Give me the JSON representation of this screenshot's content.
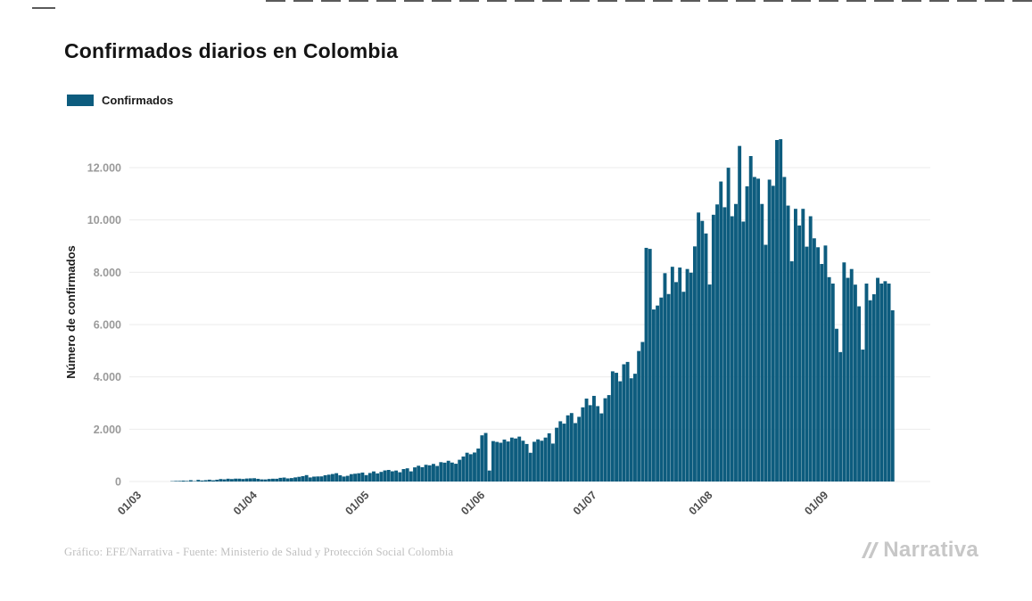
{
  "page": {
    "title": "Confirmados diarios en Colombia",
    "legend_label": "Confirmados",
    "footer_credit": "Gráfico: EFE/Narrativa - Fuente: Ministerio de Salud y Protección Social Colombia",
    "brand": "Narrativa"
  },
  "colors": {
    "bar": "#0d5c7e",
    "grid": "#ebebeb",
    "ytick_text": "#9a9a9a",
    "xtick_text": "#4d4d4d",
    "axis_title": "#1a1a1a"
  },
  "chart_data": {
    "type": "bar",
    "title": "Confirmados diarios en Colombia",
    "xlabel": "",
    "ylabel": "Número de confirmados",
    "legend": [
      "Confirmados"
    ],
    "legend_position": "top-left",
    "grid": "horizontal",
    "bar_color": "#0d5c7e",
    "ylim": [
      0,
      13500
    ],
    "yticks": [
      0,
      2000,
      4000,
      6000,
      8000,
      10000,
      12000
    ],
    "ytick_labels": [
      "0",
      "2.000",
      "4.000",
      "6.000",
      "8.000",
      "10.000",
      "12.000"
    ],
    "x_frequency": "daily",
    "x_start_label": "01/03",
    "xtick_labels": [
      "01/03",
      "01/04",
      "01/05",
      "01/06",
      "01/07",
      "01/08",
      "01/09"
    ],
    "xtick_indices": [
      0,
      31,
      61,
      92,
      122,
      153,
      184
    ],
    "values": [
      0,
      0,
      0,
      0,
      0,
      1,
      1,
      4,
      3,
      6,
      9,
      13,
      22,
      24,
      34,
      23,
      50,
      16,
      62,
      37,
      51,
      70,
      46,
      69,
      95,
      83,
      107,
      94,
      110,
      109,
      96,
      114,
      121,
      126,
      103,
      81,
      79,
      97,
      107,
      106,
      140,
      152,
      119,
      132,
      158,
      180,
      206,
      245,
      156,
      188,
      194,
      196,
      241,
      261,
      287,
      318,
      240,
      191,
      219,
      282,
      298,
      316,
      342,
      245,
      326,
      386,
      310,
      368,
      424,
      443,
      391,
      420,
      355,
      476,
      505,
      388,
      541,
      603,
      549,
      640,
      620,
      673,
      595,
      740,
      721,
      793,
      725,
      679,
      831,
      956,
      1101,
      1044,
      1109,
      1260,
      1766,
      1856,
      420,
      1546,
      1515,
      1483,
      1604,
      1531,
      1680,
      1646,
      1717,
      1561,
      1435,
      1099,
      1519,
      1611,
      1560,
      1680,
      1843,
      1451,
      2057,
      2304,
      2213,
      2530,
      2617,
      2234,
      2474,
      2836,
      3171,
      2919,
      3274,
      2882,
      2605,
      3183,
      3304,
      4213,
      4157,
      3832,
      4482,
      4572,
      3947,
      4120,
      4990,
      5335,
      8934,
      8894,
      6578,
      6727,
      7033,
      7966,
      7168,
      8210,
      7624,
      8181,
      7254,
      8125,
      7984,
      8989,
      10284,
      9964,
      9483,
      7532,
      10199,
      10593,
      11470,
      10486,
      11996,
      10142,
      10611,
      12830,
      9938,
      11286,
      12443,
      11643,
      11579,
      10611,
      9050,
      11541,
      11306,
      13056,
      13088,
      11643,
      10549,
      8419,
      10425,
      9789,
      10425,
      8979,
      10142,
      9298,
      8956,
      8317,
      9023,
      7813,
      7568,
      5839,
      4949,
      8377,
      7787,
      8124,
      7527,
      6698,
      5043,
      7568,
      6929,
      7159,
      7787,
      7568,
      7659,
      7568,
      6545
    ]
  }
}
